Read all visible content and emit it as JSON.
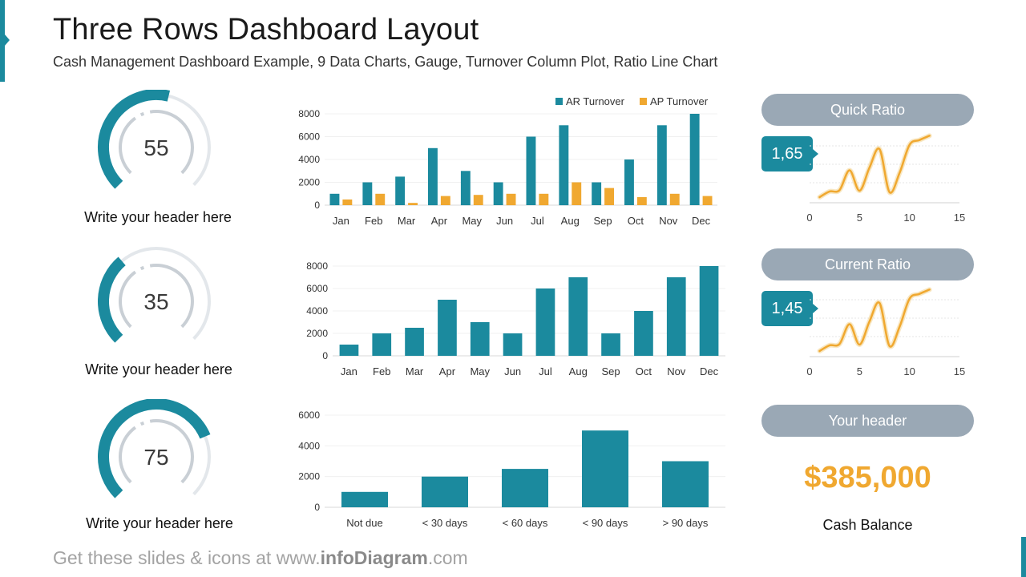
{
  "header": {
    "title": "Three Rows Dashboard Layout",
    "subtitle": "Cash Management Dashboard Example, 9 Data Charts, Gauge, Turnover Column Plot, Ratio Line Chart"
  },
  "gauges": [
    {
      "value": "55",
      "fraction": 0.55,
      "label": "Write your header  here"
    },
    {
      "value": "35",
      "fraction": 0.35,
      "label": "Write your header  here"
    },
    {
      "value": "75",
      "fraction": 0.75,
      "label": "Write your header  here"
    }
  ],
  "ratios": {
    "quick": {
      "title": "Quick Ratio",
      "value": "1,65"
    },
    "current": {
      "title": "Current Ratio",
      "value": "1,45"
    },
    "cash": {
      "title": "Your header",
      "value": "$385,000",
      "label": "Cash Balance"
    }
  },
  "footer": {
    "prefix": "Get these slides & icons at www.",
    "brand": "infoDiagram",
    "suffix": ".com"
  },
  "colors": {
    "teal": "#1B8A9E",
    "orange": "#F0A830",
    "pill": "#9AA8B5",
    "track": "#E3E7EB"
  },
  "chart_data": [
    {
      "type": "bar",
      "categories": [
        "Jan",
        "Feb",
        "Mar",
        "Apr",
        "May",
        "Jun",
        "Jul",
        "Aug",
        "Sep",
        "Oct",
        "Nov",
        "Dec"
      ],
      "series": [
        {
          "name": "AR Turnover",
          "values": [
            1000,
            2000,
            2500,
            5000,
            3000,
            2000,
            6000,
            7000,
            2000,
            4000,
            7000,
            8000
          ]
        },
        {
          "name": "AP Turnover",
          "values": [
            500,
            1000,
            200,
            800,
            900,
            1000,
            1000,
            2000,
            1500,
            700,
            1000,
            800
          ]
        }
      ],
      "ylim": [
        0,
        8000
      ],
      "yticks": [
        0,
        2000,
        4000,
        6000,
        8000
      ],
      "legend": "top-right"
    },
    {
      "type": "bar",
      "categories": [
        "Jan",
        "Feb",
        "Mar",
        "Apr",
        "May",
        "Jun",
        "Jul",
        "Aug",
        "Sep",
        "Oct",
        "Nov",
        "Dec"
      ],
      "series": [
        {
          "values": [
            1000,
            2000,
            2500,
            5000,
            3000,
            2000,
            6000,
            7000,
            2000,
            4000,
            7000,
            8000
          ]
        }
      ],
      "ylim": [
        0,
        8000
      ],
      "yticks": [
        0,
        2000,
        4000,
        6000,
        8000
      ]
    },
    {
      "type": "bar",
      "categories": [
        "Not due",
        "< 30 days",
        "< 60 days",
        "< 90 days",
        "> 90 days"
      ],
      "series": [
        {
          "values": [
            1000,
            2000,
            2500,
            5000,
            3000
          ]
        }
      ],
      "ylim": [
        0,
        6000
      ],
      "yticks": [
        0,
        2000,
        4000,
        6000
      ]
    },
    {
      "type": "line",
      "x": [
        1,
        2,
        3,
        4,
        5,
        6,
        7,
        8,
        9,
        10,
        11,
        12
      ],
      "series": [
        {
          "values": [
            0.8,
            1.6,
            1.8,
            4.6,
            1.7,
            5.0,
            7.6,
            1.5,
            4.2,
            8.2,
            8.9,
            9.5
          ]
        }
      ],
      "xlim": [
        0,
        15
      ],
      "xticks": [
        0,
        5,
        10,
        15
      ]
    },
    {
      "type": "line",
      "x": [
        1,
        2,
        3,
        4,
        5,
        6,
        7,
        8,
        9,
        10,
        11,
        12
      ],
      "series": [
        {
          "values": [
            0.8,
            1.6,
            1.8,
            4.6,
            1.7,
            5.0,
            7.6,
            1.5,
            4.2,
            8.2,
            8.9,
            9.5
          ]
        }
      ],
      "xlim": [
        0,
        15
      ],
      "xticks": [
        0,
        5,
        10,
        15
      ]
    }
  ]
}
